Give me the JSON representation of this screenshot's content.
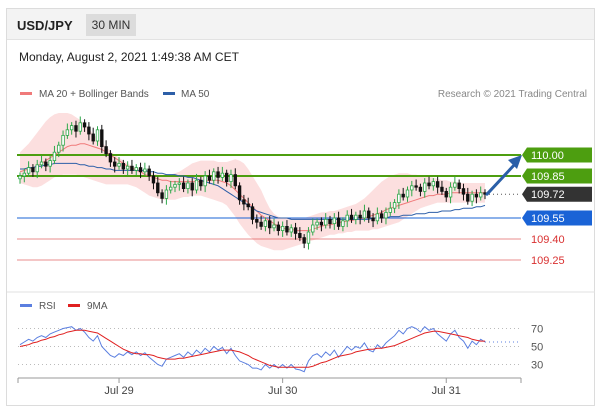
{
  "header": {
    "symbol": "USD/JPY",
    "timeframe": "30 MIN",
    "datetime": "Monday, August 2, 2021 1:49:38 AM CET"
  },
  "legend": {
    "ma20_label": "MA 20 + Bollinger Bands",
    "ma50_label": "MA 50",
    "credit": "Research © 2021 Trading Central"
  },
  "rsi_legend": {
    "rsi_label": "RSI",
    "ma9_label": "9MA"
  },
  "colors": {
    "ma20": "#f07a7a",
    "ma50": "#2d5fa8",
    "bbfill": "#fbd9d9",
    "green": "#4d9e10",
    "blue": "#1a63d6",
    "red": "#d93030",
    "bull": "#2ea84a",
    "bear": "#111111",
    "rsi": "#5b7fe0",
    "ma9": "#e02020",
    "arrow": "#2a5fa8"
  },
  "chart_data": [
    {
      "type": "candlestick",
      "xlabel": "",
      "ylabel": "",
      "x_ticks": [
        "Jul 29",
        "Jul 30",
        "Jul 31"
      ],
      "ylim": [
        109.15,
        110.35
      ],
      "levels": [
        {
          "value": 110.0,
          "label": "110.00",
          "style": "resistance"
        },
        {
          "value": 109.85,
          "label": "109.85",
          "style": "resistance"
        },
        {
          "value": 109.72,
          "label": "109.72",
          "style": "last"
        },
        {
          "value": 109.55,
          "label": "109.55",
          "style": "pivot"
        },
        {
          "value": 109.4,
          "label": "109.40",
          "style": "support"
        },
        {
          "value": 109.25,
          "label": "109.25",
          "style": "support"
        }
      ],
      "close": [
        109.85,
        109.87,
        109.91,
        109.88,
        109.93,
        109.95,
        109.92,
        109.96,
        110.02,
        110.07,
        110.14,
        110.18,
        110.21,
        110.17,
        110.23,
        110.2,
        110.15,
        110.1,
        110.18,
        110.06,
        110.01,
        109.95,
        109.92,
        109.94,
        109.9,
        109.92,
        109.89,
        109.91,
        109.88,
        109.9,
        109.85,
        109.8,
        109.73,
        109.69,
        109.75,
        109.77,
        109.79,
        109.8,
        109.76,
        109.8,
        109.75,
        109.82,
        109.78,
        109.85,
        109.82,
        109.88,
        109.84,
        109.87,
        109.81,
        109.86,
        109.78,
        109.68,
        109.65,
        109.63,
        109.54,
        109.52,
        109.49,
        109.53,
        109.48,
        109.5,
        109.46,
        109.49,
        109.45,
        109.48,
        109.44,
        109.41,
        109.37,
        109.45,
        109.5,
        109.52,
        109.5,
        109.54,
        109.51,
        109.55,
        109.49,
        109.53,
        109.57,
        109.54,
        109.57,
        109.55,
        109.6,
        109.55,
        109.53,
        109.58,
        109.55,
        109.59,
        109.62,
        109.66,
        109.72,
        109.7,
        109.75,
        109.78,
        109.77,
        109.74,
        109.8,
        109.78,
        109.81,
        109.77,
        109.74,
        109.7,
        109.77,
        109.8,
        109.76,
        109.72,
        109.67,
        109.72,
        109.7,
        109.73,
        109.72
      ],
      "ma20": [
        109.88,
        109.89,
        109.9,
        109.91,
        109.92,
        109.94,
        109.96,
        109.98,
        110.0,
        110.02,
        110.04,
        110.06,
        110.07,
        110.07,
        110.08,
        110.08,
        110.07,
        110.06,
        110.05,
        110.04,
        110.02,
        110.0,
        109.98,
        109.96,
        109.94,
        109.92,
        109.91,
        109.89,
        109.88,
        109.86,
        109.85,
        109.84,
        109.83,
        109.82,
        109.82,
        109.81,
        109.81,
        109.81,
        109.81,
        109.81,
        109.81,
        109.81,
        109.81,
        109.81,
        109.82,
        109.82,
        109.82,
        109.81,
        109.8,
        109.78,
        109.75,
        109.72,
        109.69,
        109.66,
        109.63,
        109.6,
        109.57,
        109.55,
        109.53,
        109.51,
        109.49,
        109.48,
        109.47,
        109.47,
        109.46,
        109.46,
        109.46,
        109.46,
        109.47,
        109.48,
        109.49,
        109.5,
        109.5,
        109.51,
        109.52,
        109.52,
        109.53,
        109.53,
        109.54,
        109.54,
        109.55,
        109.56,
        109.57,
        109.58,
        109.59,
        109.61,
        109.62,
        109.63,
        109.64,
        109.65,
        109.66,
        109.67,
        109.68,
        109.69,
        109.7,
        109.71,
        109.71,
        109.72,
        109.72,
        109.72,
        109.73,
        109.73,
        109.73,
        109.73,
        109.73,
        109.73,
        109.73,
        109.73,
        109.73
      ],
      "ma50": [
        109.9,
        109.9,
        109.91,
        109.91,
        109.92,
        109.92,
        109.93,
        109.93,
        109.94,
        109.94,
        109.94,
        109.94,
        109.94,
        109.94,
        109.93,
        109.93,
        109.92,
        109.92,
        109.91,
        109.91,
        109.9,
        109.9,
        109.89,
        109.89,
        109.89,
        109.89,
        109.89,
        109.89,
        109.89,
        109.89,
        109.88,
        109.88,
        109.87,
        109.87,
        109.86,
        109.86,
        109.86,
        109.85,
        109.85,
        109.84,
        109.84,
        109.83,
        109.82,
        109.81,
        109.8,
        109.79,
        109.78,
        109.76,
        109.74,
        109.72,
        109.7,
        109.68,
        109.66,
        109.64,
        109.62,
        109.6,
        109.59,
        109.58,
        109.57,
        109.56,
        109.55,
        109.55,
        109.55,
        109.54,
        109.54,
        109.54,
        109.54,
        109.54,
        109.54,
        109.54,
        109.54,
        109.54,
        109.54,
        109.54,
        109.54,
        109.54,
        109.54,
        109.54,
        109.54,
        109.54,
        109.54,
        109.54,
        109.55,
        109.55,
        109.55,
        109.55,
        109.56,
        109.56,
        109.56,
        109.57,
        109.57,
        109.57,
        109.58,
        109.58,
        109.58,
        109.59,
        109.59,
        109.59,
        109.6,
        109.6,
        109.6,
        109.61,
        109.61,
        109.62,
        109.62,
        109.62,
        109.63,
        109.63,
        109.64
      ],
      "bb_upper": [
        110.02,
        110.05,
        110.08,
        110.12,
        110.16,
        110.2,
        110.24,
        110.27,
        110.29,
        110.3,
        110.3,
        110.3,
        110.29,
        110.27,
        110.25,
        110.22,
        110.19,
        110.15,
        110.12,
        110.09,
        110.06,
        110.03,
        110.0,
        109.98,
        109.96,
        109.94,
        109.92,
        109.91,
        109.9,
        109.89,
        109.88,
        109.87,
        109.86,
        109.86,
        109.86,
        109.86,
        109.87,
        109.88,
        109.9,
        109.92,
        109.94,
        109.95,
        109.96,
        109.96,
        109.96,
        109.96,
        109.95,
        109.95,
        109.95,
        109.96,
        109.97,
        109.96,
        109.94,
        109.9,
        109.85,
        109.8,
        109.75,
        109.68,
        109.62,
        109.58,
        109.56,
        109.55,
        109.55,
        109.55,
        109.55,
        109.55,
        109.55,
        109.56,
        109.57,
        109.58,
        109.59,
        109.59,
        109.6,
        109.6,
        109.61,
        109.62,
        109.63,
        109.64,
        109.65,
        109.67,
        109.69,
        109.72,
        109.75,
        109.78,
        109.81,
        109.83,
        109.85,
        109.86,
        109.87,
        109.87,
        109.87,
        109.86,
        109.86,
        109.85,
        109.85,
        109.84,
        109.84,
        109.83,
        109.82,
        109.82,
        109.81,
        109.81,
        109.8,
        109.8,
        109.8,
        109.8,
        109.8,
        109.8,
        109.8
      ],
      "bb_lower": [
        109.8,
        109.79,
        109.78,
        109.77,
        109.77,
        109.78,
        109.8,
        109.82,
        109.84,
        109.85,
        109.86,
        109.86,
        109.86,
        109.86,
        109.85,
        109.84,
        109.83,
        109.82,
        109.81,
        109.8,
        109.79,
        109.79,
        109.79,
        109.79,
        109.79,
        109.79,
        109.78,
        109.77,
        109.75,
        109.73,
        109.71,
        109.7,
        109.69,
        109.68,
        109.68,
        109.68,
        109.68,
        109.69,
        109.7,
        109.7,
        109.71,
        109.71,
        109.71,
        109.7,
        109.69,
        109.68,
        109.67,
        109.66,
        109.64,
        109.6,
        109.56,
        109.51,
        109.47,
        109.43,
        109.4,
        109.37,
        109.35,
        109.34,
        109.33,
        109.32,
        109.32,
        109.32,
        109.33,
        109.34,
        109.35,
        109.36,
        109.37,
        109.38,
        109.39,
        109.4,
        109.41,
        109.42,
        109.43,
        109.43,
        109.44,
        109.44,
        109.45,
        109.45,
        109.46,
        109.46,
        109.46,
        109.46,
        109.47,
        109.47,
        109.48,
        109.49,
        109.5,
        109.51,
        109.52,
        109.54,
        109.56,
        109.58,
        109.6,
        109.62,
        109.63,
        109.64,
        109.65,
        109.66,
        109.66,
        109.66,
        109.66,
        109.66,
        109.66,
        109.66,
        109.66,
        109.66,
        109.66,
        109.66,
        109.66
      ]
    },
    {
      "type": "line",
      "xlabel": "",
      "ylabel": "",
      "ylim": [
        15,
        85
      ],
      "y_ticks": [
        "70",
        "50",
        "30"
      ],
      "series": [
        {
          "name": "RSI",
          "values": [
            52,
            55,
            58,
            56,
            60,
            62,
            60,
            64,
            66,
            68,
            70,
            71,
            72,
            68,
            70,
            66,
            60,
            56,
            62,
            50,
            45,
            40,
            38,
            42,
            40,
            44,
            41,
            44,
            40,
            43,
            38,
            34,
            30,
            28,
            36,
            38,
            40,
            42,
            38,
            44,
            40,
            46,
            42,
            48,
            44,
            50,
            46,
            49,
            42,
            48,
            40,
            34,
            32,
            30,
            26,
            26,
            24,
            30,
            26,
            30,
            26,
            30,
            26,
            30,
            25,
            24,
            22,
            34,
            40,
            42,
            38,
            44,
            40,
            46,
            38,
            44,
            50,
            46,
            50,
            48,
            54,
            46,
            44,
            52,
            48,
            54,
            58,
            62,
            68,
            64,
            70,
            72,
            70,
            66,
            72,
            68,
            70,
            64,
            60,
            56,
            64,
            68,
            60,
            56,
            48,
            56,
            52,
            58,
            55
          ]
        },
        {
          "name": "9MA",
          "values": [
            50,
            51,
            52,
            54,
            55,
            57,
            58,
            60,
            61,
            63,
            64,
            66,
            67,
            68,
            68,
            68,
            67,
            66,
            65,
            62,
            59,
            56,
            53,
            50,
            47,
            45,
            43,
            42,
            42,
            41,
            41,
            40,
            38,
            37,
            36,
            36,
            36,
            37,
            37,
            38,
            39,
            40,
            41,
            42,
            43,
            44,
            45,
            46,
            46,
            46,
            45,
            44,
            42,
            40,
            37,
            35,
            33,
            31,
            29,
            28,
            27,
            27,
            27,
            27,
            27,
            27,
            27,
            27,
            28,
            30,
            32,
            33,
            35,
            37,
            39,
            40,
            41,
            42,
            44,
            45,
            46,
            47,
            47,
            48,
            48,
            49,
            50,
            51,
            53,
            55,
            57,
            59,
            61,
            63,
            65,
            66,
            67,
            67,
            66,
            65,
            64,
            63,
            62,
            61,
            60,
            58,
            57,
            56,
            56
          ]
        }
      ]
    }
  ]
}
